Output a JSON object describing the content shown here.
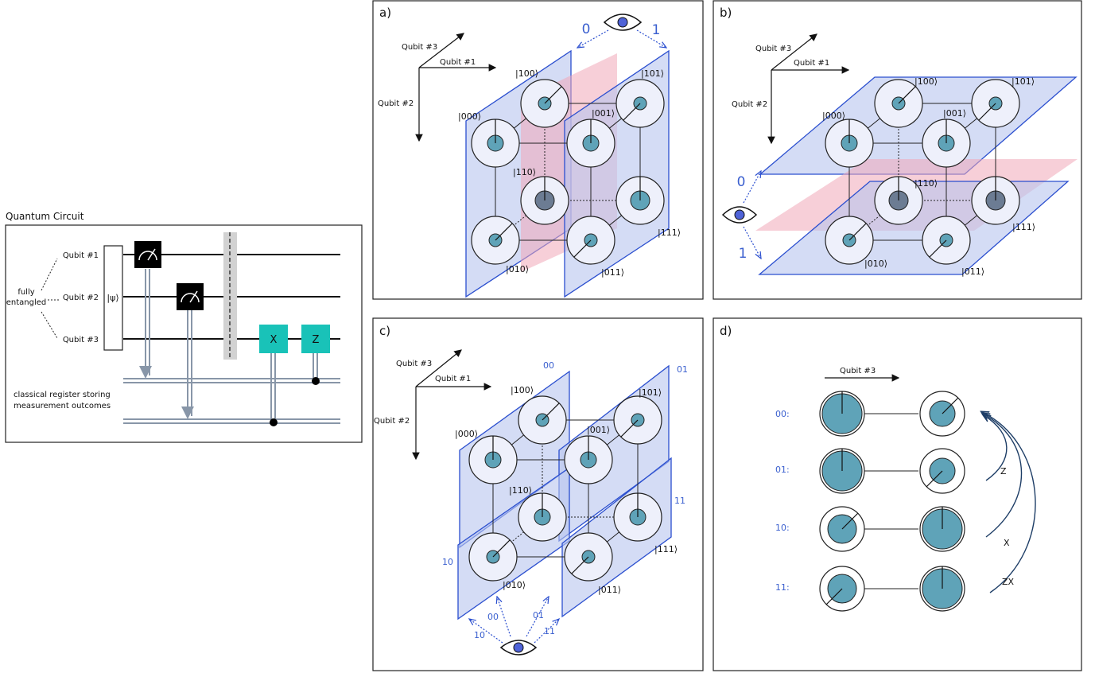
{
  "circuit": {
    "title": "Quantum Circuit",
    "qubits": [
      "Qubit #1",
      "Qubit #2",
      "Qubit #3"
    ],
    "entangled_label": [
      "fully",
      "entangled"
    ],
    "state_label": "|ψ⟩",
    "gates": [
      "X",
      "Z"
    ],
    "register_label": [
      "classical register storing",
      "measurement outcomes"
    ]
  },
  "panel_a": {
    "label": "a)",
    "axes": [
      "Qubit #3",
      "Qubit #1",
      "Qubit #2"
    ],
    "states": [
      "|000⟩",
      "|100⟩",
      "|001⟩",
      "|101⟩",
      "|110⟩",
      "|111⟩",
      "|010⟩",
      "|011⟩"
    ],
    "view_labels": [
      "0",
      "1"
    ]
  },
  "panel_b": {
    "label": "b)",
    "axes": [
      "Qubit #3",
      "Qubit #1",
      "Qubit #2"
    ],
    "states": [
      "|000⟩",
      "|100⟩",
      "|001⟩",
      "|101⟩",
      "|110⟩",
      "|111⟩",
      "|010⟩",
      "|011⟩"
    ],
    "view_labels": [
      "0",
      "1"
    ]
  },
  "panel_c": {
    "label": "c)",
    "axes": [
      "Qubit #3",
      "Qubit #1",
      "Qubit #2"
    ],
    "states": [
      "|000⟩",
      "|100⟩",
      "|001⟩",
      "|101⟩",
      "|110⟩",
      "|111⟩",
      "|010⟩",
      "|011⟩"
    ],
    "plane_labels": [
      "00",
      "01",
      "11",
      "10"
    ],
    "eye_labels": [
      "10",
      "00",
      "01",
      "11"
    ]
  },
  "panel_d": {
    "label": "d)",
    "axis": "Qubit #3",
    "rows": [
      "00:",
      "01:",
      "10:",
      "11:"
    ],
    "corrections": [
      "Z",
      "X",
      "ZX"
    ]
  },
  "colors": {
    "plane": "#b8c4ee",
    "pink": "#f1a7b8",
    "teal": "#5fa3b8",
    "gate": "#19c2b8",
    "label_blue": "#3a5fcf"
  }
}
